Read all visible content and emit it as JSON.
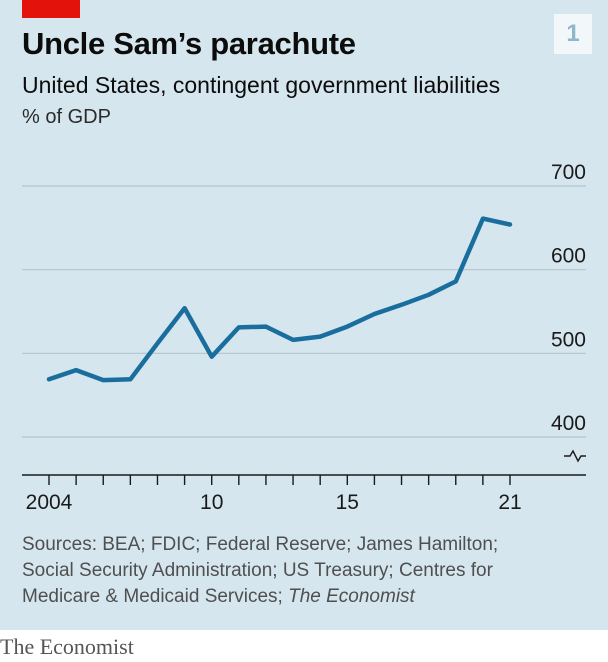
{
  "header": {
    "title": "Uncle Sam’s parachute",
    "subtitle": "United States, contingent government liabilities",
    "unit": "% of GDP",
    "badge": "1"
  },
  "sources": {
    "line1": "Sources: BEA; FDIC; Federal Reserve; James Hamilton;",
    "line2": "Social Security Administration; US Treasury; Centres for",
    "line3_plain": "Medicare & Medicaid Services; ",
    "line3_italic": "The Economist"
  },
  "brand": "The Economist",
  "colors": {
    "background": "#d6e6ef",
    "line": "#1a6e9e",
    "accent_red": "#e3120b",
    "grid": "#b5c3cc"
  },
  "chart_data": {
    "type": "line",
    "title": "Uncle Sam’s parachute",
    "subtitle": "United States, contingent government liabilities",
    "ylabel": "% of GDP",
    "x": [
      2004,
      2005,
      2006,
      2007,
      2008,
      2009,
      2010,
      2011,
      2012,
      2013,
      2014,
      2015,
      2016,
      2017,
      2018,
      2019,
      2020,
      2021
    ],
    "series": [
      {
        "values": [
          469,
          480,
          468,
          469,
          512,
          554,
          496,
          531,
          532,
          516,
          520,
          532,
          547,
          558,
          570,
          586,
          661,
          654
        ]
      }
    ],
    "xlim": [
      2004,
      2021
    ],
    "ylim": [
      400,
      700
    ],
    "yticks": [
      400,
      500,
      600,
      700
    ],
    "ytick_labels": [
      "400",
      "500",
      "600",
      "700"
    ],
    "xtick_labels": [
      {
        "value": 2004,
        "label": "2004"
      },
      {
        "value": 2010,
        "label": "10"
      },
      {
        "value": 2015,
        "label": "15"
      },
      {
        "value": 2021,
        "label": "21"
      }
    ],
    "grid": true,
    "broken_axis": true
  }
}
